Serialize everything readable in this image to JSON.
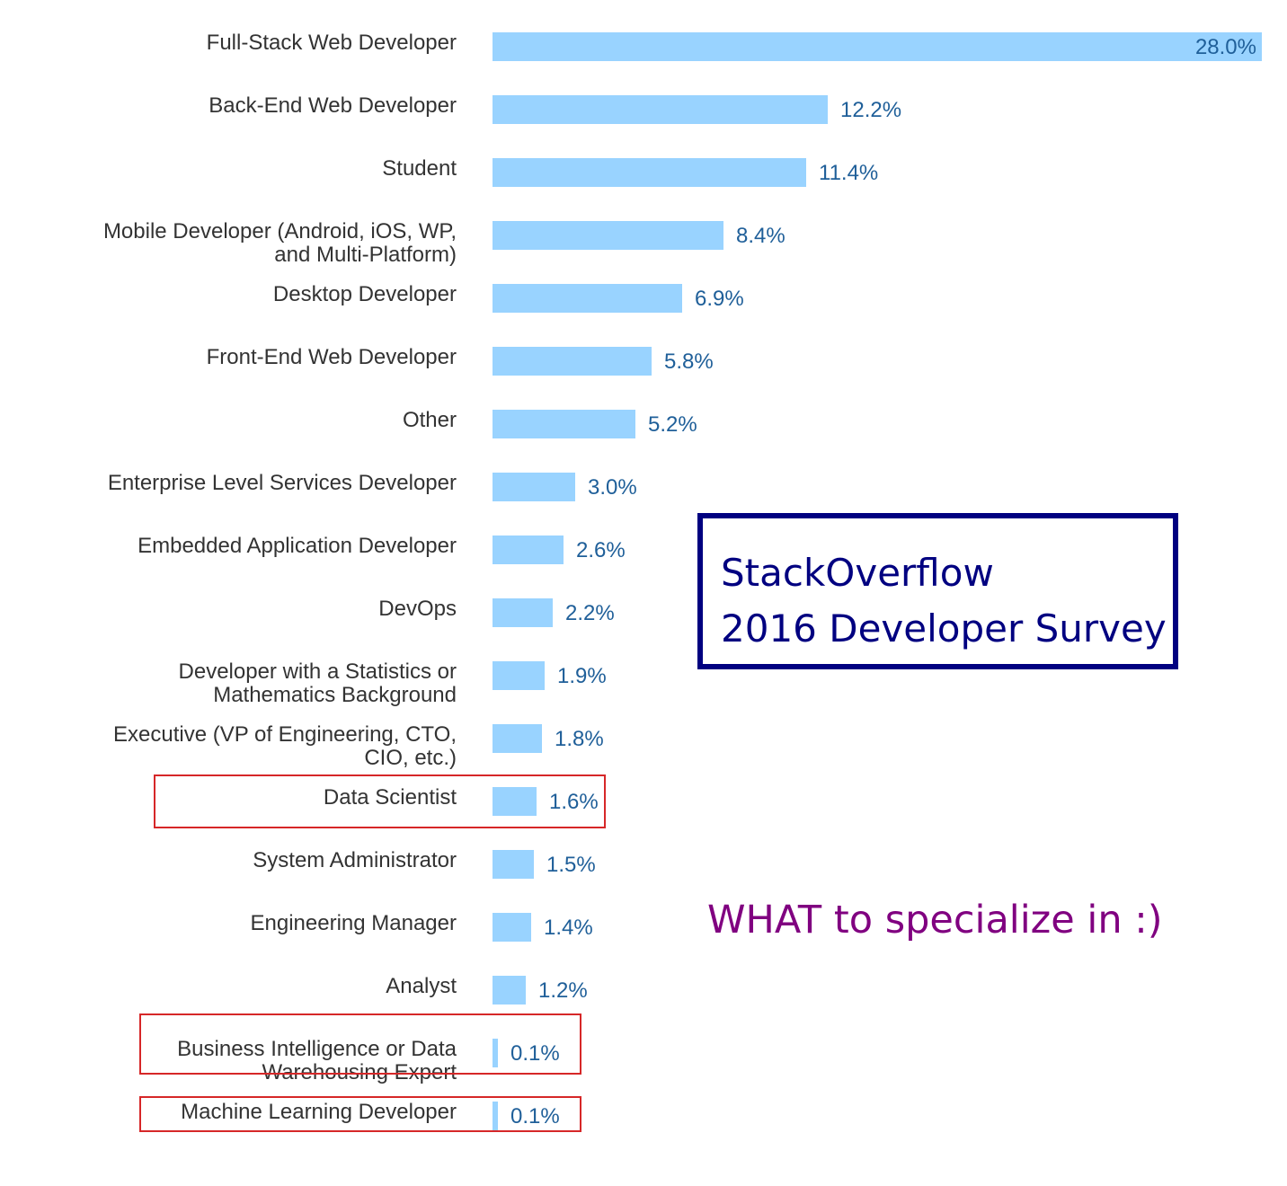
{
  "chart_data": {
    "type": "bar",
    "orientation": "horizontal",
    "title": "",
    "xlabel": "",
    "ylabel": "",
    "xlim": [
      0,
      28
    ],
    "grid": false,
    "categories": [
      "Full-Stack Web Developer",
      "Back-End Web Developer",
      "Student",
      "Mobile Developer (Android, iOS, WP,\nand Multi-Platform)",
      "Desktop Developer",
      "Front-End Web Developer",
      "Other",
      "Enterprise Level Services Developer",
      "Embedded Application Developer",
      "DevOps",
      "Developer with a Statistics or\nMathematics Background",
      "Executive (VP of Engineering, CTO,\nCIO, etc.)",
      "Data Scientist",
      "System Administrator",
      "Engineering Manager",
      "Analyst",
      "Business Intelligence or Data\nWarehousing Expert",
      "Machine Learning Developer"
    ],
    "values": [
      28.0,
      12.2,
      11.4,
      8.4,
      6.9,
      5.8,
      5.2,
      3.0,
      2.6,
      2.2,
      1.9,
      1.8,
      1.6,
      1.5,
      1.4,
      1.2,
      0.1,
      0.1
    ],
    "value_labels": [
      "28.0%",
      "12.2%",
      "11.4%",
      "8.4%",
      "6.9%",
      "5.8%",
      "5.2%",
      "3.0%",
      "2.6%",
      "2.2%",
      "1.9%",
      "1.8%",
      "1.6%",
      "1.5%",
      "1.4%",
      "1.2%",
      "0.1%",
      "0.1%"
    ],
    "highlighted": [
      "Data Scientist",
      "Business Intelligence or Data\nWarehousing Expert",
      "Machine Learning Developer"
    ]
  },
  "annotations": {
    "title_box_lines": [
      "StackOverflow",
      "2016 Developer Survey"
    ],
    "note": "WHAT to specialize in :)"
  },
  "colors": {
    "bar": "#99d3ff",
    "value_label": "#1f5f99",
    "category_label": "#333333",
    "highlight_box": "#d62728",
    "title_box": "#000080",
    "note": "#800080"
  }
}
